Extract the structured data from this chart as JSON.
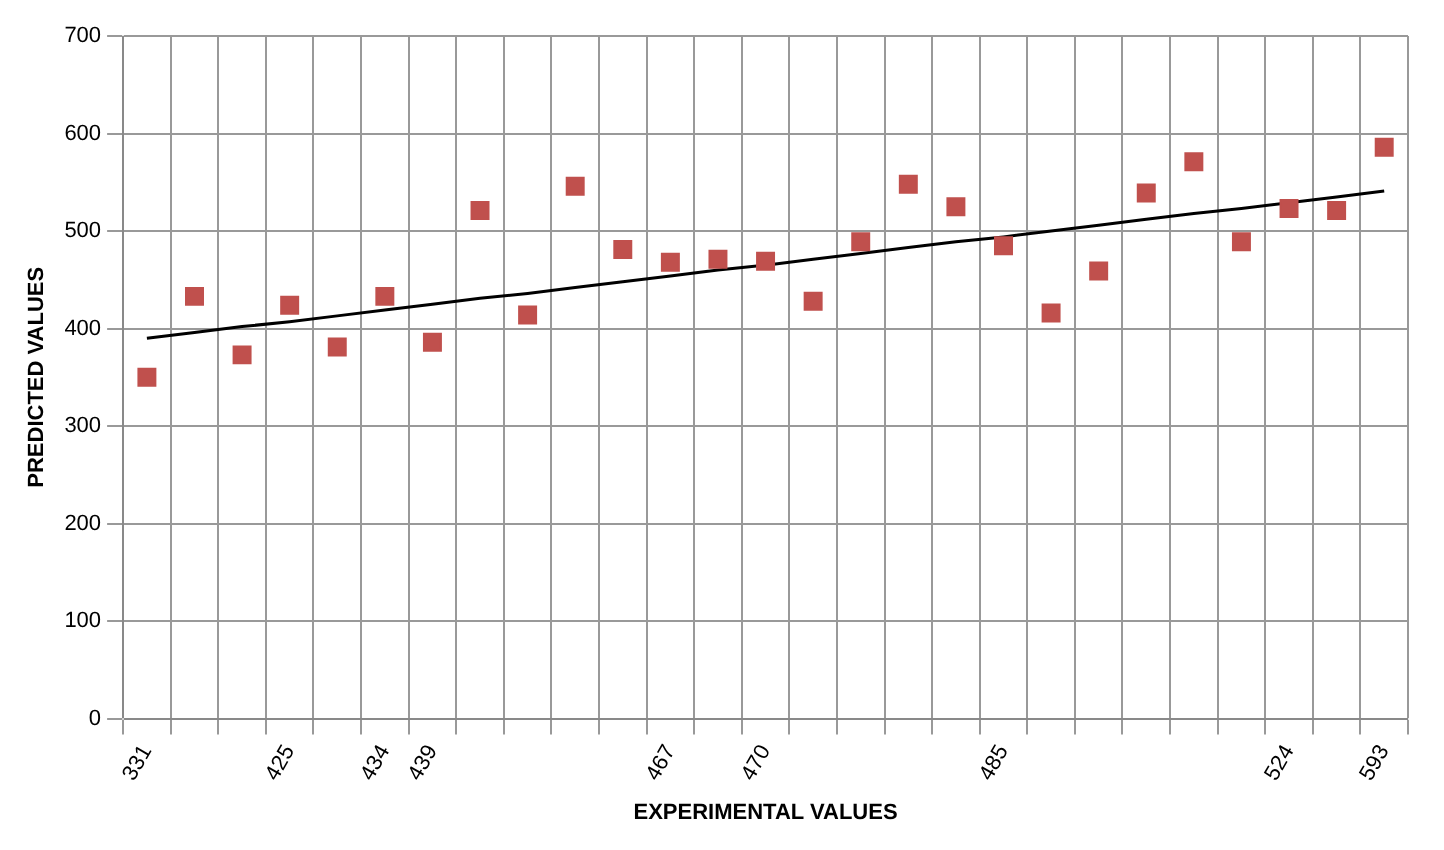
{
  "chart_data": {
    "type": "scatter",
    "xlabel": "EXPERIMENTAL VALUES",
    "ylabel": "PREDICTED VALUES",
    "categories": [
      "331",
      null,
      null,
      "425",
      null,
      "434",
      "439",
      null,
      null,
      null,
      null,
      "467",
      null,
      "470",
      null,
      null,
      null,
      null,
      "485",
      null,
      null,
      null,
      null,
      null,
      "524",
      null,
      "593"
    ],
    "series": [
      {
        "color": "#c0504d",
        "marker": "square",
        "values": [
          350,
          433,
          373,
          424,
          381,
          433,
          386,
          521,
          414,
          546,
          481,
          468,
          471,
          469,
          428,
          489,
          548,
          525,
          485,
          416,
          459,
          539,
          571,
          489,
          523,
          521,
          586
        ]
      },
      {
        "type": "line",
        "color": "#000000",
        "marker": "none",
        "line_style": "solid",
        "values": [
          390,
          396,
          402,
          407,
          413,
          419,
          425,
          431,
          436,
          442,
          448,
          454,
          460,
          465,
          471,
          477,
          483,
          489,
          494,
          500,
          506,
          512,
          518,
          523,
          529,
          535,
          541
        ]
      }
    ],
    "ylim": [
      0,
      700
    ],
    "yticks": [
      0,
      100,
      200,
      300,
      400,
      500,
      600,
      700
    ],
    "grid": true,
    "legend": false
  }
}
